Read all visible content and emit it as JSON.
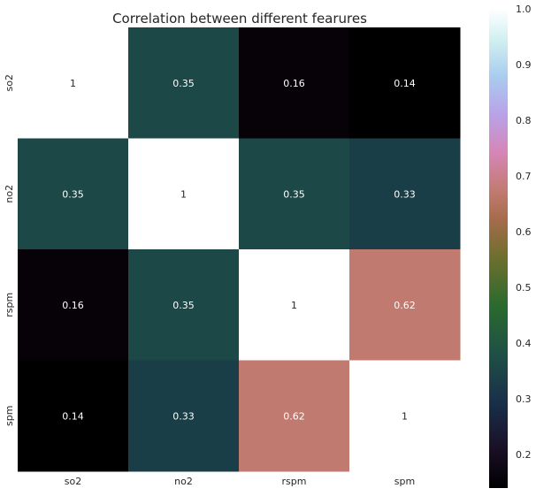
{
  "chart_data": {
    "type": "heatmap",
    "title": "Correlation between different fearures",
    "x_categories": [
      "so2",
      "no2",
      "rspm",
      "spm"
    ],
    "y_categories": [
      "so2",
      "no2",
      "rspm",
      "spm"
    ],
    "values": [
      [
        1,
        0.35,
        0.16,
        0.14
      ],
      [
        0.35,
        1,
        0.35,
        0.33
      ],
      [
        0.16,
        0.35,
        1,
        0.62
      ],
      [
        0.14,
        0.33,
        0.62,
        1
      ]
    ],
    "value_labels": [
      [
        "1",
        "0.35",
        "0.16",
        "0.14"
      ],
      [
        "0.35",
        "1",
        "0.35",
        "0.33"
      ],
      [
        "0.16",
        "0.35",
        "1",
        "0.62"
      ],
      [
        "0.14",
        "0.33",
        "0.62",
        "1"
      ]
    ],
    "colormap": "cubehelix",
    "vmin": 0.14,
    "vmax": 1.0,
    "colorbar_ticks": [
      0.2,
      0.3,
      0.4,
      0.5,
      0.6,
      0.7,
      0.8,
      0.9,
      1.0
    ],
    "colorbar_tick_labels": [
      "0.2",
      "0.3",
      "0.4",
      "0.5",
      "0.6",
      "0.7",
      "0.8",
      "0.9",
      "1.0"
    ],
    "xlabel": "",
    "ylabel": "",
    "grid": false
  }
}
